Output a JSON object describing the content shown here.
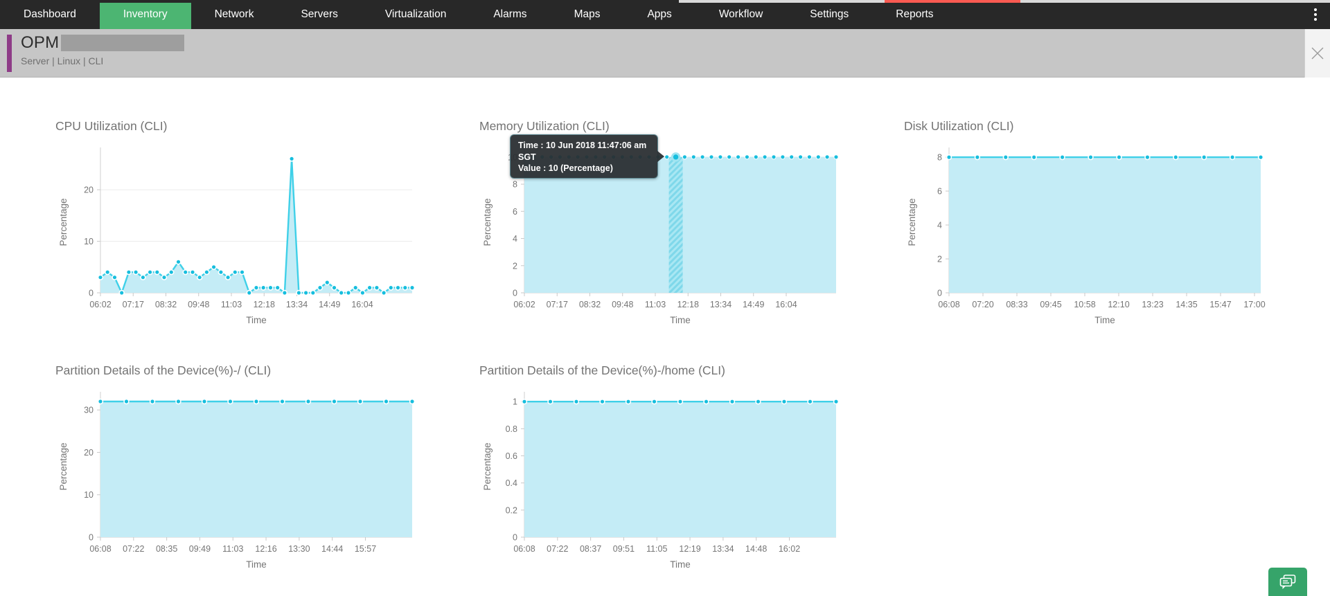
{
  "nav": {
    "items": [
      {
        "label": "Dashboard",
        "active": false
      },
      {
        "label": "Inventory",
        "active": true
      },
      {
        "label": "Network",
        "active": false
      },
      {
        "label": "Servers",
        "active": false
      },
      {
        "label": "Virtualization",
        "active": false
      },
      {
        "label": "Alarms",
        "active": false
      },
      {
        "label": "Maps",
        "active": false
      },
      {
        "label": "Apps",
        "active": false
      },
      {
        "label": "Workflow",
        "active": false
      },
      {
        "label": "Settings",
        "active": false
      },
      {
        "label": "Reports",
        "active": false
      }
    ]
  },
  "header": {
    "title": "OPM",
    "subtitle": "Server | Linux  | CLI"
  },
  "icons": {
    "kebab_menu": "vertical-ellipsis",
    "close": "x-cross",
    "chat": "speech-bubbles"
  },
  "colors": {
    "nav_bg": "#282828",
    "active_tab_green": "#4cb572",
    "loading_bar_red": "#fb5a52",
    "device_band_gray": "#c6c6c6",
    "device_accent_purple": "#8e3b87",
    "chart_line_cyan": "#3fd0e8",
    "chart_marker_cyan": "#16bede",
    "chart_fill_cyan": "#c4ecf6",
    "chat_button_green": "#36a46a"
  },
  "tooltip": {
    "line1": "Time : 10 Jun 2018 11:47:06 am",
    "line2": "SGT",
    "line3": "Value : 10 (Percentage)"
  },
  "chart_data": [
    {
      "type": "area",
      "title": "CPU Utilization (CLI)",
      "xlabel": "Time",
      "ylabel": "Percentage",
      "yticks": [
        0,
        10,
        20
      ],
      "ymax": 27.4,
      "xticklabels": [
        "06:02",
        "07:17",
        "08:32",
        "09:48",
        "11:03",
        "12:18",
        "13:34",
        "14:49",
        "16:04"
      ],
      "label_span": 0.84,
      "style": "solid",
      "values": [
        3,
        4,
        3,
        0,
        4,
        4,
        3,
        4,
        4,
        3,
        4,
        6,
        4,
        4,
        3,
        4,
        5,
        4,
        3,
        4,
        4,
        0,
        1,
        1,
        1,
        1,
        0,
        26,
        0,
        0,
        0,
        1,
        2,
        1,
        0,
        0,
        1,
        0,
        1,
        1,
        0,
        1,
        1,
        1,
        1
      ]
    },
    {
      "type": "area",
      "title": "Memory Utilization (CLI)",
      "xlabel": "Time",
      "ylabel": "Percentage",
      "yticks": [
        0,
        2,
        4,
        6,
        8,
        10
      ],
      "ymax": 10.4,
      "xticklabels": [
        "06:02",
        "07:17",
        "08:32",
        "09:48",
        "11:03",
        "12:18",
        "13:34",
        "14:49",
        "16:04"
      ],
      "label_span": 0.84,
      "style": "dotted",
      "values": [
        10,
        10,
        10,
        10,
        10,
        10,
        10,
        10,
        10,
        10,
        10,
        10,
        10,
        10,
        10,
        10,
        10,
        10,
        10,
        10,
        10,
        10,
        10,
        10,
        10,
        10,
        10,
        10,
        10,
        10,
        10,
        10,
        10,
        10,
        10,
        10
      ],
      "hover": {
        "index": 17,
        "time": "10 Jun 2018 11:47:06 am SGT",
        "value": 10
      }
    },
    {
      "type": "area",
      "title": "Disk Utilization (CLI)",
      "xlabel": "Time",
      "ylabel": "Percentage",
      "yticks": [
        0,
        2,
        4,
        6,
        8
      ],
      "ymax": 8.33,
      "xticklabels": [
        "06:08",
        "07:20",
        "08:33",
        "09:45",
        "10:58",
        "12:10",
        "13:23",
        "14:35",
        "15:47",
        "17:00"
      ],
      "label_span": 0.98,
      "style": "solid",
      "values": [
        8,
        8,
        8,
        8,
        8,
        8,
        8,
        8,
        8,
        8,
        8,
        8
      ]
    },
    {
      "type": "area",
      "title": "Partition Details of the Device(%)-/ (CLI)",
      "xlabel": "Time",
      "ylabel": "Percentage",
      "yticks": [
        0,
        10,
        20,
        30
      ],
      "ymax": 33.3,
      "xticklabels": [
        "06:08",
        "07:22",
        "08:35",
        "09:49",
        "11:03",
        "12:16",
        "13:30",
        "14:44",
        "15:57"
      ],
      "label_span": 0.85,
      "style": "solid",
      "values": [
        32,
        32,
        32,
        32,
        32,
        32,
        32,
        32,
        32,
        32,
        32,
        32,
        32
      ]
    },
    {
      "type": "area",
      "title": "Partition Details of the Device(%)-/home (CLI)",
      "xlabel": "Time",
      "ylabel": "Percentage",
      "yticks": [
        0,
        0.2,
        0.4,
        0.6,
        0.8,
        1
      ],
      "ymax": 1.042,
      "xticklabels": [
        "06:08",
        "07:22",
        "08:37",
        "09:51",
        "11:05",
        "12:19",
        "13:34",
        "14:48",
        "16:02"
      ],
      "label_span": 0.85,
      "style": "solid",
      "values": [
        1,
        1,
        1,
        1,
        1,
        1,
        1,
        1,
        1,
        1,
        1,
        1,
        1
      ]
    }
  ]
}
